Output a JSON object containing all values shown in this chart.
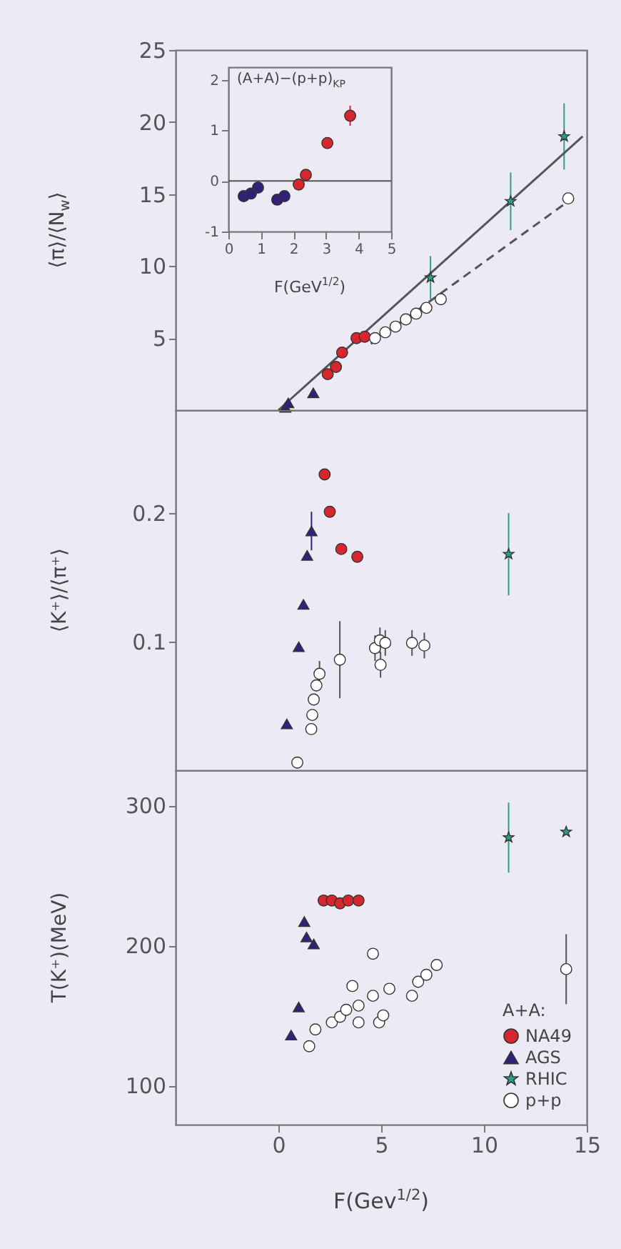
{
  "chart_data": [
    {
      "type": "scatter",
      "ylabel": "⟨π⟩/⟨N$_{w}$⟩",
      "xlim": [
        -5,
        15
      ],
      "xticks": [
        0,
        5,
        10,
        15
      ],
      "ylim": [
        0,
        25
      ],
      "yticks": [
        5,
        10,
        15,
        20,
        25
      ],
      "tick_labels": "y",
      "grid": false,
      "series": [
        {
          "color": "#d7262e",
          "marker": "circle",
          "x": [
            2.4,
            2.8,
            3.1,
            3.8,
            4.2
          ],
          "values": [
            2.5,
            3.0,
            4.0,
            5.0,
            5.1
          ]
        },
        {
          "color": "#33207a",
          "marker": "triangle",
          "x": [
            0.34,
            0.48,
            1.7
          ],
          "values": [
            0.2,
            0.5,
            1.2
          ]
        },
        {
          "color": "#2f9e86",
          "marker": "star",
          "x": [
            7.4,
            11.3,
            13.9
          ],
          "values": [
            9.2,
            14.5,
            19.0
          ],
          "errors": [
            1.5,
            2,
            2.3
          ]
        },
        {
          "color": "#ffffff",
          "marker": "circle",
          "x": [
            4.7,
            5.2,
            5.7,
            6.2,
            6.7,
            7.2,
            7.9,
            14.1
          ],
          "values": [
            5.0,
            5.4,
            5.8,
            6.3,
            6.7,
            7.1,
            7.7,
            14.7
          ]
        },
        {
          "type": "line",
          "color": "#555555",
          "line_style": "solid",
          "x": [
            0,
            14.8
          ],
          "values": [
            0,
            19
          ]
        },
        {
          "type": "line",
          "color": "#555555",
          "line_style": "dashed",
          "x": [
            4.5,
            14.1
          ],
          "values": [
            4.6,
            14.5
          ]
        }
      ]
    },
    {
      "type": "scatter",
      "xlabel": "F(GeV$^{1/2}$)",
      "annotations": [
        "(A+A)−(p+p)$_{KP}$"
      ],
      "xlim": [
        0,
        5
      ],
      "xticks": [
        0,
        1,
        2,
        3,
        4,
        5
      ],
      "ylim": [
        -1,
        2.25
      ],
      "yticks": [
        -1,
        0,
        1,
        2
      ],
      "grid": false,
      "ref_lines": [
        {
          "axis": "y",
          "value": 0,
          "color": "#555555"
        }
      ],
      "series": [
        {
          "color": "#33207a",
          "marker": "circle",
          "x": [
            0.47,
            0.69,
            0.91,
            1.5,
            1.72
          ],
          "values": [
            -0.3,
            -0.25,
            -0.13,
            -0.37,
            -0.3
          ]
        },
        {
          "color": "#d7262e",
          "marker": "circle",
          "x": [
            2.16,
            2.38,
            3.04,
            3.74
          ],
          "values": [
            -0.07,
            0.12,
            0.75,
            1.29
          ],
          "errors": [
            null,
            null,
            null,
            0.2
          ]
        }
      ]
    },
    {
      "type": "scatter",
      "ylabel": "⟨K⁺⟩/⟨π⁺⟩",
      "xlim": [
        -5,
        15
      ],
      "xticks": [
        0,
        5,
        10,
        15
      ],
      "ylim": [
        0,
        0.28
      ],
      "yticks": [
        0.1,
        0.2
      ],
      "tick_labels": "y",
      "grid": false,
      "series": [
        {
          "color": "#d7262e",
          "marker": "circle",
          "x": [
            2.25,
            2.5,
            3.06,
            3.84
          ],
          "values": [
            0.23,
            0.201,
            0.172,
            0.166
          ]
        },
        {
          "color": "#33207a",
          "marker": "triangle",
          "x": [
            0.41,
            0.99,
            1.22,
            1.4,
            1.61
          ],
          "values": [
            0.036,
            0.096,
            0.129,
            0.167,
            0.186
          ],
          "errors": [
            null,
            null,
            null,
            null,
            0.015
          ]
        },
        {
          "color": "#2f9e86",
          "marker": "star",
          "x": [
            11.2
          ],
          "values": [
            0.168
          ],
          "errors": [
            0.032
          ]
        },
        {
          "color": "#ffffff",
          "marker": "circle",
          "x": [
            0.92,
            1.6,
            1.65,
            1.72,
            1.85,
            2.0,
            2.99,
            4.7,
            4.94,
            4.97,
            5.2,
            6.5,
            7.1
          ],
          "values": [
            0.006,
            0.032,
            0.043,
            0.055,
            0.066,
            0.075,
            0.086,
            0.095,
            0.101,
            0.082,
            0.099,
            0.099,
            0.097
          ],
          "errors": [
            null,
            null,
            null,
            null,
            null,
            0.01,
            0.03,
            0.01,
            0.01,
            0.01,
            0.01,
            0.01,
            0.01
          ]
        }
      ]
    },
    {
      "type": "scatter",
      "ylabel": "T(K⁺)(MeV)",
      "xlabel": "F(Gev$^{1/2}$)",
      "legend_title": "A+A:",
      "xlim": [
        -5,
        15
      ],
      "xticks": [
        0,
        5,
        10,
        15
      ],
      "ylim": [
        72,
        325
      ],
      "yticks": [
        100,
        200,
        300
      ],
      "grid": false,
      "legend": "bottom right",
      "series": [
        {
          "name": "NA49",
          "color": "#d7262e",
          "marker": "circle",
          "x": [
            2.2,
            2.6,
            3.0,
            3.4,
            3.9
          ],
          "values": [
            232,
            232,
            230,
            232,
            232
          ]
        },
        {
          "name": "AGS",
          "color": "#33207a",
          "marker": "triangle",
          "x": [
            0.62,
            0.99,
            1.26,
            1.37,
            1.72
          ],
          "values": [
            136,
            156,
            217,
            206,
            201
          ]
        },
        {
          "name": "RHIC",
          "color": "#2f9e86",
          "marker": "star",
          "x": [
            11.2,
            14.0
          ],
          "values": [
            277,
            281
          ],
          "errors": [
            25,
            null
          ]
        },
        {
          "name": "p+p",
          "color": "#ffffff",
          "marker": "circle",
          "x": [
            1.5,
            1.8,
            2.6,
            3.0,
            3.3,
            3.6,
            3.9,
            3.9,
            4.6,
            4.6,
            4.9,
            5.1,
            5.4,
            6.5,
            6.8,
            7.2,
            7.7,
            14.0
          ],
          "values": [
            128,
            140,
            145,
            149,
            154,
            171,
            157,
            145,
            194,
            164,
            145,
            150,
            169,
            164,
            174,
            179,
            186,
            183
          ],
          "errors": [
            null,
            null,
            null,
            null,
            null,
            null,
            null,
            null,
            null,
            null,
            null,
            null,
            null,
            null,
            null,
            null,
            null,
            25
          ]
        }
      ]
    }
  ]
}
